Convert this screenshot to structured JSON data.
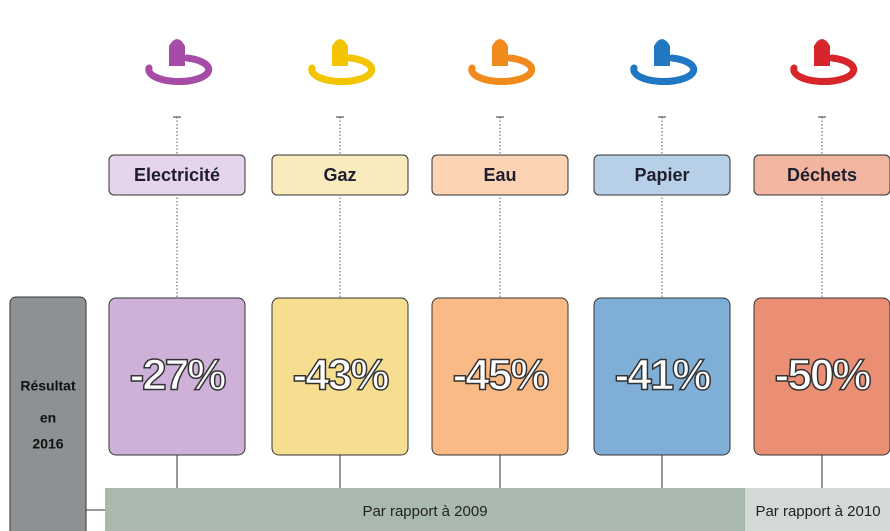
{
  "items": [
    {
      "label": "Electricité",
      "result": "-27%",
      "color": "#cdb1d9",
      "light": "#e6d4ec",
      "icon": "#a64ca6"
    },
    {
      "label": "Gaz",
      "result": "-43%",
      "color": "#f6dd8f",
      "light": "#faebbc",
      "icon": "#f2c500"
    },
    {
      "label": "Eau",
      "result": "-45%",
      "color": "#f9ba86",
      "light": "#fcd4b3",
      "icon": "#f08a1c"
    },
    {
      "label": "Papier",
      "result": "-41%",
      "color": "#7fafd6",
      "light": "#b8d0e7",
      "icon": "#1f78c1"
    },
    {
      "label": "Déchets",
      "result": "-50%",
      "color": "#ea8f73",
      "light": "#f2b6a0",
      "icon": "#d7262b"
    }
  ],
  "side_label": [
    "Résultat",
    "en",
    "2016"
  ],
  "baselines": [
    "Par rapport à 2009",
    "Par rapport à 2010"
  ]
}
